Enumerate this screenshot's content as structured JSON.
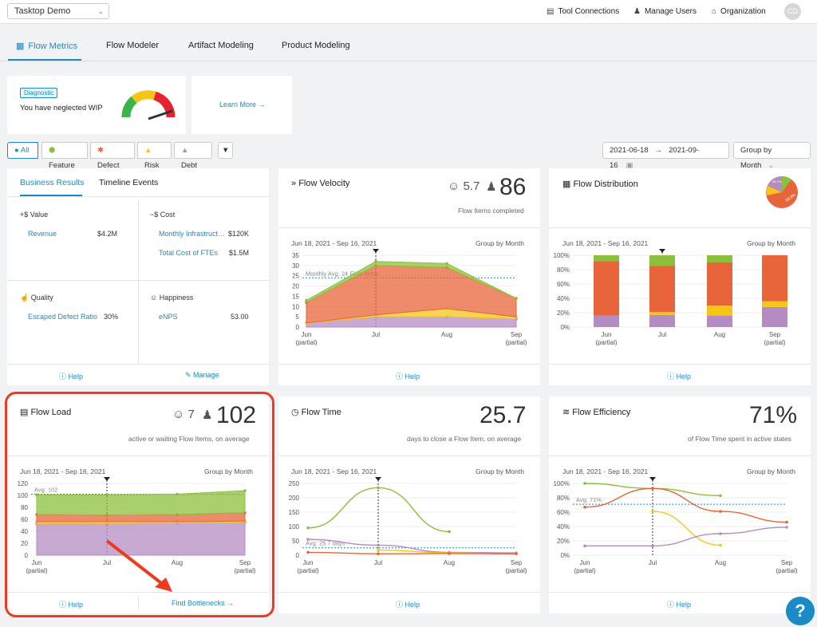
{
  "topbar": {
    "workspace": "Tasktop Demo",
    "tool_connections": "Tool Connections",
    "manage_users": "Manage Users",
    "organization": "Organization",
    "avatar": "CD"
  },
  "tabs": [
    "Flow Metrics",
    "Flow Modeler",
    "Artifact Modeling",
    "Product Modeling"
  ],
  "diagnostic": {
    "badge": "Diagnostic",
    "message": "You have neglected WIP",
    "learn_more": "Learn More"
  },
  "filters": {
    "all": "All",
    "feature": "Feature",
    "defect": "Defect",
    "risk": "Risk",
    "debt": "Debt",
    "date_from": "2021-06-18",
    "date_to": "2021-09-16",
    "group_by": "Group by Month"
  },
  "business": {
    "tab_results": "Business Results",
    "tab_timeline": "Timeline Events",
    "value_title": "+$ Value",
    "revenue_label": "Revenue",
    "revenue_value": "$4.2M",
    "cost_title": "−$ Cost",
    "cost1_label": "Monthly Infrastruct…",
    "cost1_value": "$120K",
    "cost2_label": "Total Cost of FTEs",
    "cost2_value": "$1.5M",
    "quality_title": "Quality",
    "quality_label": "Escaped Defect Ratio",
    "quality_value": "30%",
    "happiness_title": "Happiness",
    "happiness_label": "eNPS",
    "happiness_value": "53.00",
    "help": "Help",
    "manage": "Manage"
  },
  "velocity": {
    "title": "Flow Velocity",
    "count_small": "5.7",
    "count_big": "86",
    "subtitle": "Flow Items completed",
    "range": "Jun 18, 2021 - Sep 16, 2021",
    "group": "Group by Month",
    "avg_label": "Monthly Avg: 24 Flow Items",
    "help": "Help"
  },
  "distribution": {
    "title": "Flow Distribution",
    "range": "Jun 18, 2021 - Sep 16, 2021",
    "group": "Group by Month",
    "help": "Help",
    "pie_labels": [
      "35.7%",
      "56.9%"
    ]
  },
  "load": {
    "title": "Flow Load",
    "count_small": "7",
    "count_big": "102",
    "subtitle": "active or waiting Flow Items, on average",
    "range": "Jun 18, 2021 - Sep 16, 2021",
    "group": "Group by Month",
    "avg_label": "Avg: 102",
    "help": "Help",
    "find": "Find Bottlenecks"
  },
  "time": {
    "title": "Flow Time",
    "big": "25.7",
    "subtitle": "days to close a Flow Item, on average",
    "range": "Jun 18, 2021 - Sep 16, 2021",
    "group": "Group by Month",
    "avg_label": "Avg: 25.7 days",
    "help": "Help"
  },
  "efficiency": {
    "title": "Flow Efficiency",
    "big": "71%",
    "subtitle": "of Flow Time spent in active states",
    "range": "Jun 18, 2021 - Sep 16, 2021",
    "group": "Group by Month",
    "avg_label": "Avg: 71%",
    "help": "Help"
  },
  "chart_data": [
    {
      "type": "area",
      "x": [
        "Jun (partial)",
        "Jul",
        "Aug",
        "Sep (partial)"
      ],
      "ylim": [
        0,
        35
      ],
      "yticks": [
        0,
        5,
        10,
        15,
        20,
        25,
        30,
        35
      ],
      "series": [
        {
          "name": "Debt",
          "values": [
            2,
            5,
            5,
            4
          ]
        },
        {
          "name": "Risk",
          "values": [
            0,
            1,
            4,
            1
          ]
        },
        {
          "name": "Defect",
          "values": [
            10,
            24,
            20,
            9
          ]
        },
        {
          "name": "Feature",
          "values": [
            1,
            2,
            2,
            0
          ]
        }
      ],
      "colors": [
        "#b48cc3",
        "#f5c518",
        "#e8643a",
        "#8cc03c"
      ]
    },
    {
      "type": "bar",
      "categories": [
        "Jun (partial)",
        "Jul",
        "Aug",
        "Sep (partial)"
      ],
      "ylim": [
        0,
        1
      ],
      "yticks": [
        "0%",
        "20%",
        "40%",
        "60%",
        "80%",
        "100%"
      ],
      "series": [
        {
          "name": "Debt",
          "values": [
            0.16,
            0.17,
            0.16,
            0.28
          ]
        },
        {
          "name": "Risk",
          "values": [
            0,
            0.04,
            0.14,
            0.08
          ]
        },
        {
          "name": "Defect",
          "values": [
            0.76,
            0.64,
            0.6,
            0.64
          ]
        },
        {
          "name": "Feature",
          "values": [
            0.08,
            0.15,
            0.1,
            0
          ]
        }
      ],
      "colors": [
        "#b48cc3",
        "#f5c518",
        "#e8643a",
        "#8cc03c"
      ]
    },
    {
      "type": "area",
      "x": [
        "Jun (partial)",
        "Jul",
        "Aug",
        "Sep (partial)"
      ],
      "ylim": [
        0,
        120
      ],
      "yticks": [
        0,
        20,
        40,
        60,
        80,
        100,
        120
      ],
      "series": [
        {
          "name": "Debt",
          "values": [
            53,
            53,
            54,
            55
          ]
        },
        {
          "name": "Risk",
          "values": [
            3,
            3,
            2,
            2
          ]
        },
        {
          "name": "Defect",
          "values": [
            12,
            11,
            12,
            14
          ]
        },
        {
          "name": "Feature",
          "values": [
            33,
            34,
            34,
            37
          ]
        }
      ],
      "colors": [
        "#b48cc3",
        "#f5c518",
        "#e8643a",
        "#8cc03c"
      ]
    },
    {
      "type": "line",
      "x": [
        "Jun (partial)",
        "Jul",
        "Aug",
        "Sep (partial)"
      ],
      "ylim": [
        0,
        250
      ],
      "yticks": [
        0,
        50,
        100,
        150,
        200,
        250
      ],
      "series": [
        {
          "name": "Feature",
          "values": [
            95,
            235,
            82,
            null
          ]
        },
        {
          "name": "Debt",
          "values": [
            55,
            35,
            10,
            8
          ]
        },
        {
          "name": "Risk",
          "values": [
            null,
            18,
            8,
            5
          ]
        },
        {
          "name": "Defect",
          "values": [
            10,
            5,
            6,
            5
          ]
        }
      ],
      "colors": [
        "#8cc03c",
        "#b48cc3",
        "#f5c518",
        "#e8643a"
      ]
    },
    {
      "type": "line",
      "x": [
        "Jun (partial)",
        "Jul",
        "Aug",
        "Sep (partial)"
      ],
      "ylim": [
        0,
        1
      ],
      "yticks": [
        "0%",
        "20%",
        "40%",
        "60%",
        "80%",
        "100%"
      ],
      "series": [
        {
          "name": "Feature",
          "values": [
            1.0,
            0.93,
            0.83,
            null
          ]
        },
        {
          "name": "Defect",
          "values": [
            0.67,
            0.93,
            0.61,
            0.46
          ]
        },
        {
          "name": "Risk",
          "values": [
            null,
            0.61,
            0.14,
            null
          ]
        },
        {
          "name": "Debt",
          "values": [
            0.13,
            0.13,
            0.3,
            0.39
          ]
        }
      ],
      "colors": [
        "#8cc03c",
        "#e8643a",
        "#f5c518",
        "#b48cc3"
      ]
    }
  ]
}
